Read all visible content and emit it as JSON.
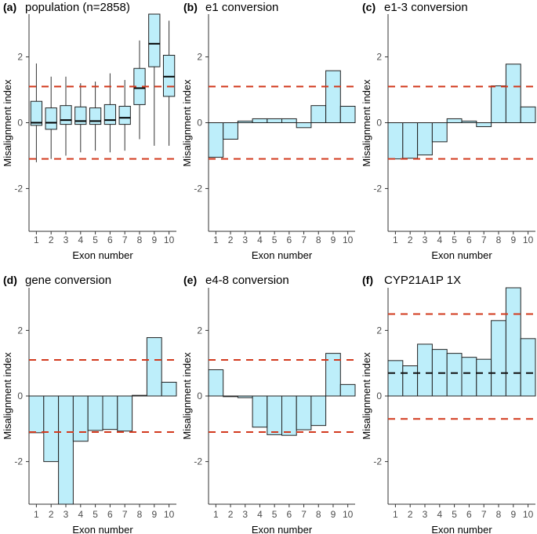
{
  "figure": {
    "panel_xlabel": "Exon number",
    "panel_ylabel": "Misalignment index"
  },
  "colors": {
    "bar_fill": "#bdeefa",
    "bar_stroke": "#222222",
    "threshold": "#d23a1e",
    "mean_line": "#111111",
    "whisker": "#333333",
    "axis_text": "#4d4d4d",
    "axis_line": "#333333"
  },
  "chart_data": [
    {
      "type": "box",
      "panel_label": "(a)",
      "title": "population (n=2858)",
      "xlabel": "Exon number",
      "ylabel": "Misalignment index",
      "categories": [
        "1",
        "2",
        "3",
        "4",
        "5",
        "6",
        "7",
        "8",
        "9",
        "10"
      ],
      "ylim": [
        -3.3,
        3.3
      ],
      "yticks": [
        -2,
        0,
        2
      ],
      "thresholds": [
        1.1,
        -1.1
      ],
      "boxes": [
        {
          "min": -1.2,
          "q1": -0.08,
          "median": 0.0,
          "q3": 0.65,
          "max": 1.8
        },
        {
          "min": -1.1,
          "q1": -0.2,
          "median": 0.0,
          "q3": 0.45,
          "max": 1.4
        },
        {
          "min": -1.0,
          "q1": -0.05,
          "median": 0.08,
          "q3": 0.52,
          "max": 1.4
        },
        {
          "min": -0.9,
          "q1": -0.05,
          "median": 0.05,
          "q3": 0.48,
          "max": 1.2
        },
        {
          "min": -0.85,
          "q1": -0.05,
          "median": 0.05,
          "q3": 0.45,
          "max": 1.25
        },
        {
          "min": -0.9,
          "q1": -0.05,
          "median": 0.08,
          "q3": 0.55,
          "max": 1.5
        },
        {
          "min": -0.85,
          "q1": -0.05,
          "median": 0.15,
          "q3": 0.5,
          "max": 1.3
        },
        {
          "min": -0.5,
          "q1": 0.55,
          "median": 1.05,
          "q3": 1.65,
          "max": 2.5
        },
        {
          "min": -0.7,
          "q1": 1.7,
          "median": 2.4,
          "q3": 3.3,
          "max": 3.3
        },
        {
          "min": -0.7,
          "q1": 0.8,
          "median": 1.4,
          "q3": 2.05,
          "max": 3.1
        }
      ]
    },
    {
      "type": "bar",
      "panel_label": "(b)",
      "title": "e1 conversion",
      "xlabel": "Exon number",
      "ylabel": "Misalignment index",
      "categories": [
        "1",
        "2",
        "3",
        "4",
        "5",
        "6",
        "7",
        "8",
        "9",
        "10"
      ],
      "values": [
        -1.05,
        -0.5,
        0.05,
        0.12,
        0.12,
        0.12,
        -0.15,
        0.52,
        1.58,
        0.5
      ],
      "ylim": [
        -3.3,
        3.3
      ],
      "yticks": [
        -2,
        0,
        2
      ],
      "thresholds": [
        1.1,
        -1.1
      ]
    },
    {
      "type": "bar",
      "panel_label": "(c)",
      "title": "e1-3 conversion",
      "xlabel": "Exon number",
      "ylabel": "Misalignment index",
      "categories": [
        "1",
        "2",
        "3",
        "4",
        "5",
        "6",
        "7",
        "8",
        "9",
        "10"
      ],
      "values": [
        -1.1,
        -1.08,
        -0.98,
        -0.58,
        0.12,
        0.05,
        -0.12,
        1.12,
        1.78,
        0.48
      ],
      "ylim": [
        -3.3,
        3.3
      ],
      "yticks": [
        -2,
        0,
        2
      ],
      "thresholds": [
        1.1,
        -1.1
      ]
    },
    {
      "type": "bar",
      "panel_label": "(d)",
      "title": "gene conversion",
      "xlabel": "Exon number",
      "ylabel": "Misalignment index",
      "categories": [
        "1",
        "2",
        "3",
        "4",
        "5",
        "6",
        "7",
        "8",
        "9",
        "10"
      ],
      "values": [
        -1.12,
        -2.0,
        -3.3,
        -1.38,
        -1.05,
        -1.02,
        -1.07,
        0.02,
        1.78,
        0.42
      ],
      "ylim": [
        -3.3,
        3.3
      ],
      "yticks": [
        -2,
        0,
        2
      ],
      "thresholds": [
        1.1,
        -1.1
      ]
    },
    {
      "type": "bar",
      "panel_label": "(e)",
      "title": "e4-8 conversion",
      "xlabel": "Exon number",
      "ylabel": "Misalignment index",
      "categories": [
        "1",
        "2",
        "3",
        "4",
        "5",
        "6",
        "7",
        "8",
        "9",
        "10"
      ],
      "values": [
        0.8,
        -0.02,
        -0.05,
        -0.95,
        -1.18,
        -1.2,
        -1.03,
        -0.9,
        1.3,
        0.35
      ],
      "ylim": [
        -3.3,
        3.3
      ],
      "yticks": [
        -2,
        0,
        2
      ],
      "thresholds": [
        1.1,
        -1.1
      ]
    },
    {
      "type": "bar",
      "panel_label": "(f)",
      "title": "CYP21A1P 1X",
      "xlabel": "Exon number",
      "ylabel": "Misalignment index",
      "categories": [
        "1",
        "2",
        "3",
        "4",
        "5",
        "6",
        "7",
        "8",
        "9",
        "10"
      ],
      "values": [
        1.08,
        0.92,
        1.58,
        1.42,
        1.3,
        1.18,
        1.12,
        2.3,
        3.3,
        1.75
      ],
      "ylim": [
        -3.3,
        3.3
      ],
      "yticks": [
        -2,
        0,
        2
      ],
      "thresholds": [
        2.5,
        -0.7
      ],
      "mean_line": 0.7
    }
  ]
}
